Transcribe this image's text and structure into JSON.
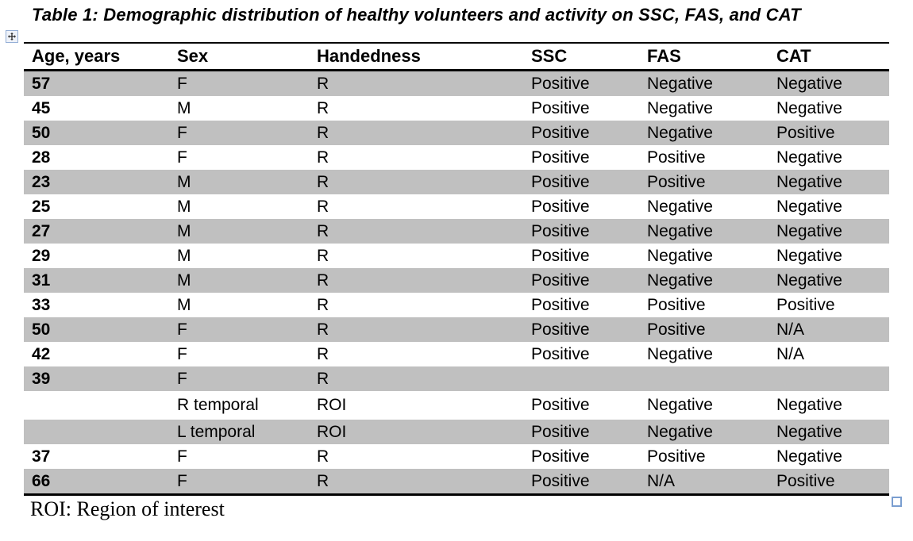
{
  "title": "Table 1: Demographic distribution of healthy volunteers and activity on SSC, FAS, and CAT",
  "table": {
    "columns": [
      "Age, years",
      "Sex",
      "Handedness",
      "SSC",
      "FAS",
      "CAT"
    ],
    "rows": [
      [
        "57",
        "F",
        "R",
        "Positive",
        "Negative",
        "Negative"
      ],
      [
        "45",
        "M",
        "R",
        "Positive",
        "Negative",
        "Negative"
      ],
      [
        "50",
        "F",
        "R",
        "Positive",
        "Negative",
        "Positive"
      ],
      [
        "28",
        "F",
        "R",
        "Positive",
        "Positive",
        "Negative"
      ],
      [
        "23",
        "M",
        "R",
        "Positive",
        "Positive",
        "Negative"
      ],
      [
        "25",
        "M",
        "R",
        "Positive",
        "Negative",
        "Negative"
      ],
      [
        "27",
        "M",
        "R",
        "Positive",
        "Negative",
        "Negative"
      ],
      [
        "29",
        "M",
        "R",
        "Positive",
        "Negative",
        "Negative"
      ],
      [
        "31",
        "M",
        "R",
        "Positive",
        "Negative",
        "Negative"
      ],
      [
        "33",
        "M",
        "R",
        "Positive",
        "Positive",
        "Positive"
      ],
      [
        "50",
        "F",
        "R",
        "Positive",
        "Positive",
        "N/A"
      ],
      [
        "42",
        "F",
        "R",
        "Positive",
        "Negative",
        "N/A"
      ],
      [
        "39",
        "F",
        "R",
        "",
        "",
        ""
      ],
      [
        "",
        "R temporal",
        "ROI",
        "Positive",
        "Negative",
        "Negative"
      ],
      [
        "",
        "L temporal",
        "ROI",
        "Positive",
        "Negative",
        "Negative"
      ],
      [
        "37",
        "F",
        "R",
        "Positive",
        "Positive",
        "Negative"
      ],
      [
        "66",
        "F",
        "R",
        "Positive",
        "N/A",
        "Positive"
      ]
    ],
    "shading_color": "#c0c0c0"
  },
  "footnote": "ROI: Region of interest",
  "icons": {
    "move_handle": "table-move-handle",
    "resize_handle": "table-resize-handle",
    "handle_border_color": "#7a9ed0"
  }
}
